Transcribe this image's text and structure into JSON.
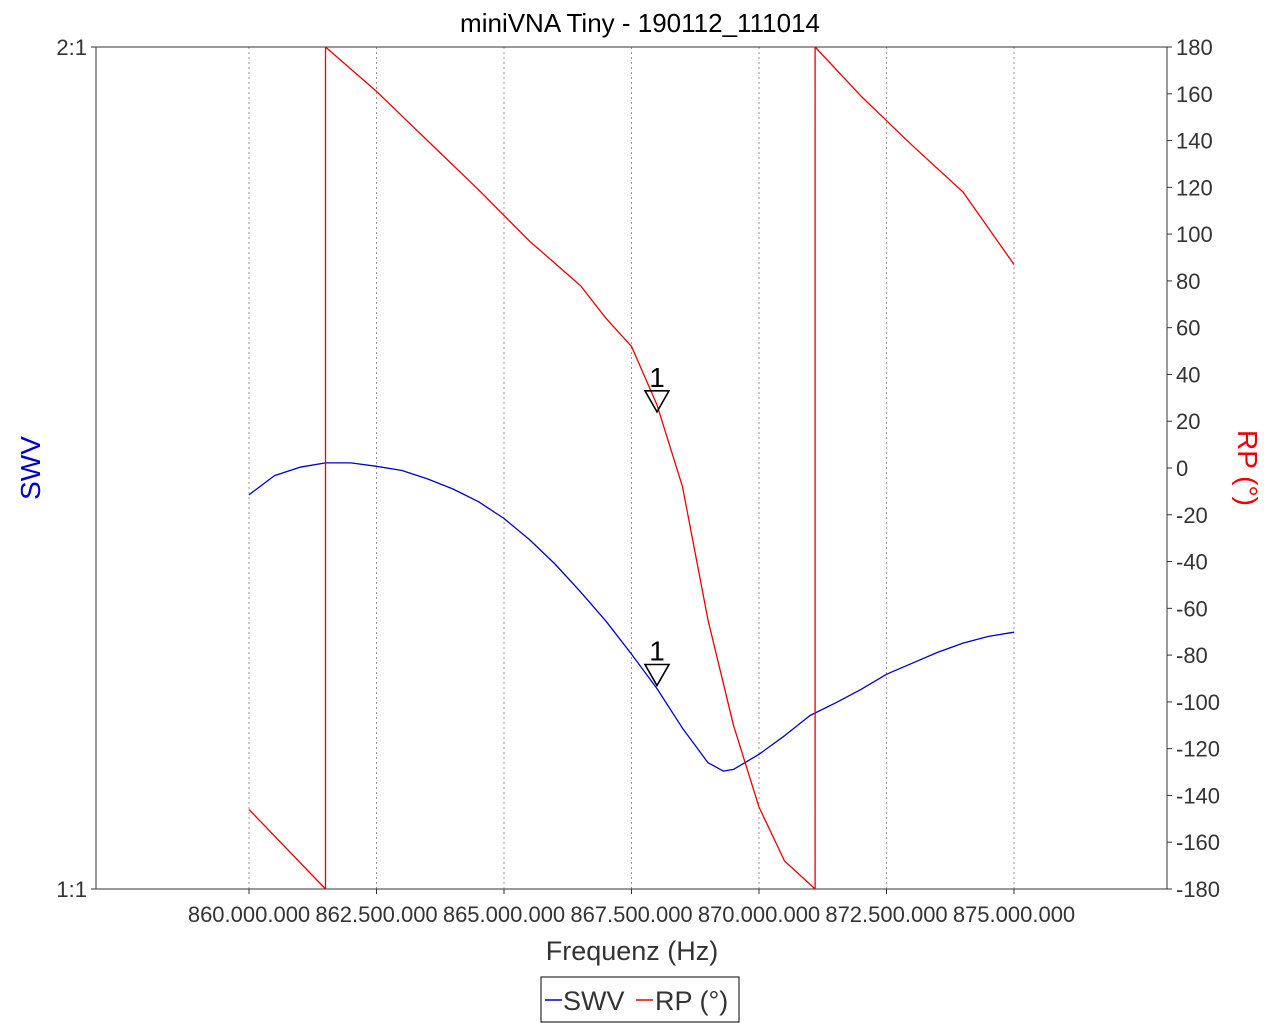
{
  "colors": {
    "swr": "#0000cc",
    "phase": "#ee0000",
    "grid": "#999999",
    "axis": "#333333",
    "background": "#ffffff"
  },
  "chart_data": {
    "type": "line",
    "title": "miniVNA Tiny - 190112_111014",
    "xlabel": "Frequenz (Hz)",
    "ylabel_left": "SWV",
    "ylabel_right": "RP (°)",
    "xlim": [
      857000000,
      878000000
    ],
    "ylim_left": [
      1,
      2
    ],
    "ylim_right": [
      -180,
      180
    ],
    "grid": true,
    "legend_position": "bottom-center",
    "x_ticks": [
      {
        "value": 860000000,
        "label": "860.000.000"
      },
      {
        "value": 862500000,
        "label": "862.500.000"
      },
      {
        "value": 865000000,
        "label": "865.000.000"
      },
      {
        "value": 867500000,
        "label": "867.500.000"
      },
      {
        "value": 870000000,
        "label": "870.000.000"
      },
      {
        "value": 872500000,
        "label": "872.500.000"
      },
      {
        "value": 875000000,
        "label": "875.000.000"
      }
    ],
    "y_left_ticks": [
      {
        "value": 2,
        "label": "2:1"
      },
      {
        "value": 1,
        "label": "1:1"
      }
    ],
    "y_right_ticks": [
      {
        "value": 180,
        "label": "180"
      },
      {
        "value": 160,
        "label": "160"
      },
      {
        "value": 140,
        "label": "140"
      },
      {
        "value": 120,
        "label": "120"
      },
      {
        "value": 100,
        "label": "100"
      },
      {
        "value": 80,
        "label": "80"
      },
      {
        "value": 60,
        "label": "60"
      },
      {
        "value": 40,
        "label": "40"
      },
      {
        "value": 20,
        "label": "20"
      },
      {
        "value": 0,
        "label": "0"
      },
      {
        "value": -20,
        "label": "-20"
      },
      {
        "value": -40,
        "label": "-40"
      },
      {
        "value": -60,
        "label": "-60"
      },
      {
        "value": -80,
        "label": "-80"
      },
      {
        "value": -100,
        "label": "-100"
      },
      {
        "value": -120,
        "label": "-120"
      },
      {
        "value": -140,
        "label": "-140"
      },
      {
        "value": -160,
        "label": "-160"
      },
      {
        "value": -180,
        "label": "-180"
      }
    ],
    "series": [
      {
        "name": "SWV",
        "axis": "left",
        "color": "#0000cc",
        "x": [
          860000000,
          860500000,
          861000000,
          861500000,
          862000000,
          862500000,
          863000000,
          863500000,
          864000000,
          864500000,
          865000000,
          865500000,
          866000000,
          866500000,
          867000000,
          867500000,
          868000000,
          868500000,
          869000000,
          869300000,
          869500000,
          870000000,
          870500000,
          871000000,
          871500000,
          872000000,
          872500000,
          873000000,
          873500000,
          874000000,
          874500000,
          875000000
        ],
        "y": [
          1.468,
          1.491,
          1.501,
          1.506,
          1.506,
          1.502,
          1.497,
          1.487,
          1.475,
          1.46,
          1.44,
          1.415,
          1.386,
          1.353,
          1.318,
          1.279,
          1.238,
          1.191,
          1.15,
          1.14,
          1.142,
          1.16,
          1.182,
          1.206,
          1.221,
          1.237,
          1.255,
          1.268,
          1.281,
          1.292,
          1.3,
          1.305
        ]
      },
      {
        "name": "RP (°)",
        "axis": "right",
        "color": "#ee0000",
        "x": [
          860000000,
          861500000,
          861500001,
          862500000,
          863500000,
          864500000,
          865500000,
          866500000,
          867000000,
          867500000,
          868000000,
          868500000,
          869000000,
          869500000,
          870000000,
          870500000,
          871100000,
          871100001,
          872000000,
          873000000,
          874000000,
          875000000
        ],
        "y": [
          -146,
          -180,
          180,
          161,
          140,
          119,
          97,
          78,
          64,
          52,
          27,
          -8,
          -65,
          -110,
          -145,
          -168,
          -180,
          180,
          159,
          138,
          118,
          87
        ]
      }
    ],
    "markers": [
      {
        "label": "1",
        "series": "SWV",
        "x": 868000000,
        "y": 1.25
      },
      {
        "label": "1",
        "series": "RP (°)",
        "x": 868000000,
        "y": 27
      }
    ],
    "legend": [
      {
        "label": "SWV",
        "color": "#0000cc"
      },
      {
        "label": "RP (°)",
        "color": "#ee0000"
      }
    ]
  }
}
